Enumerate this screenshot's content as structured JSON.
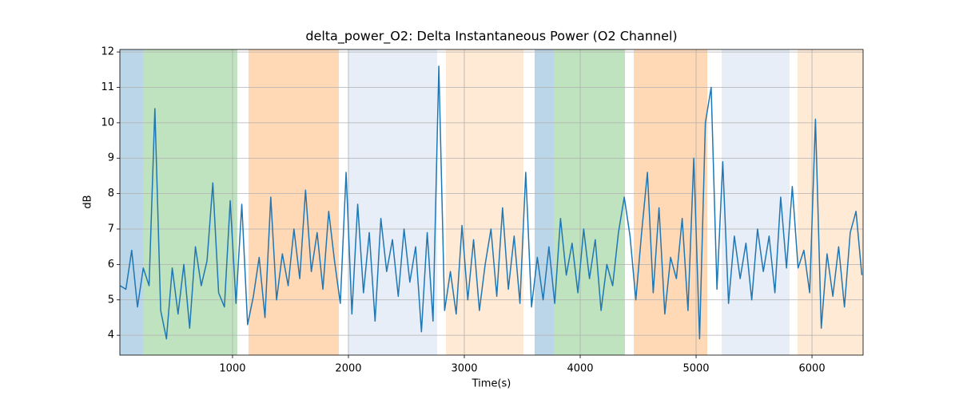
{
  "chart_data": {
    "type": "line",
    "title": "delta_power_O2: Delta Instantaneous Power (O2 Channel)",
    "xlabel": "Time(s)",
    "ylabel": "dB",
    "color": "#1f77b4",
    "x": [
      30,
      80,
      130,
      180,
      230,
      280,
      330,
      380,
      430,
      480,
      530,
      580,
      630,
      680,
      730,
      780,
      830,
      880,
      930,
      980,
      1030,
      1080,
      1130,
      1180,
      1230,
      1280,
      1330,
      1380,
      1430,
      1480,
      1530,
      1580,
      1630,
      1680,
      1730,
      1780,
      1830,
      1880,
      1930,
      1980,
      2030,
      2080,
      2130,
      2180,
      2230,
      2280,
      2330,
      2380,
      2430,
      2480,
      2530,
      2580,
      2630,
      2680,
      2730,
      2780,
      2830,
      2880,
      2930,
      2980,
      3030,
      3080,
      3130,
      3180,
      3230,
      3280,
      3330,
      3380,
      3430,
      3480,
      3530,
      3580,
      3630,
      3680,
      3730,
      3780,
      3830,
      3880,
      3930,
      3980,
      4030,
      4080,
      4130,
      4180,
      4230,
      4280,
      4330,
      4380,
      4430,
      4480,
      4530,
      4580,
      4630,
      4680,
      4730,
      4780,
      4830,
      4880,
      4930,
      4980,
      5030,
      5080,
      5130,
      5180,
      5230,
      5280,
      5330,
      5380,
      5430,
      5480,
      5530,
      5580,
      5630,
      5680,
      5730,
      5780,
      5830,
      5880,
      5930,
      5980,
      6030,
      6080,
      6130,
      6180,
      6230,
      6280,
      6330,
      6380,
      6430
    ],
    "values": [
      5.4,
      5.3,
      6.4,
      4.8,
      5.9,
      5.4,
      10.4,
      4.7,
      3.9,
      5.9,
      4.6,
      6.0,
      4.2,
      6.5,
      5.4,
      6.1,
      8.3,
      5.2,
      4.8,
      7.8,
      4.9,
      7.7,
      4.3,
      5.1,
      6.2,
      4.5,
      7.9,
      5.0,
      6.3,
      5.4,
      7.0,
      5.6,
      8.1,
      5.8,
      6.9,
      5.3,
      7.5,
      6.1,
      4.9,
      8.6,
      4.6,
      7.7,
      5.2,
      6.9,
      4.4,
      7.3,
      5.8,
      6.7,
      5.1,
      7.0,
      5.5,
      6.5,
      4.1,
      6.9,
      4.4,
      11.6,
      4.7,
      5.8,
      4.6,
      7.1,
      5.0,
      6.7,
      4.7,
      6.0,
      7.0,
      5.1,
      7.6,
      5.3,
      6.8,
      4.9,
      8.6,
      4.8,
      6.2,
      5.0,
      6.5,
      4.9,
      7.3,
      5.7,
      6.6,
      5.2,
      7.0,
      5.6,
      6.7,
      4.7,
      6.0,
      5.4,
      6.9,
      7.9,
      6.8,
      5.0,
      6.9,
      8.6,
      5.2,
      7.6,
      4.6,
      6.2,
      5.6,
      7.3,
      4.7,
      9.0,
      3.9,
      10.0,
      11.0,
      5.3,
      8.9,
      4.9,
      6.8,
      5.6,
      6.6,
      5.0,
      7.0,
      5.8,
      6.8,
      5.2,
      7.9,
      5.9,
      8.2,
      5.9,
      6.4,
      5.2,
      10.1,
      4.2,
      6.3,
      5.1,
      6.5,
      4.8,
      6.9,
      7.5,
      5.7
    ],
    "regions": [
      {
        "start": 28,
        "end": 228,
        "color": "#1f77b4"
      },
      {
        "start": 228,
        "end": 1041,
        "color": "#2ca02c"
      },
      {
        "start": 1138,
        "end": 1917,
        "color": "#ff7f0e"
      },
      {
        "start": 2000,
        "end": 2766,
        "color": "#aec7e8"
      },
      {
        "start": 2841,
        "end": 3510,
        "color": "#ffbb78"
      },
      {
        "start": 3607,
        "end": 3772,
        "color": "#1f77b4"
      },
      {
        "start": 3772,
        "end": 4386,
        "color": "#2ca02c"
      },
      {
        "start": 4462,
        "end": 5097,
        "color": "#ff7f0e"
      },
      {
        "start": 5221,
        "end": 5807,
        "color": "#aec7e8"
      },
      {
        "start": 5876,
        "end": 6441,
        "color": "#ffbb78"
      }
    ],
    "xlim": [
      28,
      6441
    ],
    "ylim": [
      3.44,
      12.07
    ],
    "xticks": [
      1000,
      2000,
      3000,
      4000,
      5000,
      6000
    ],
    "yticks": [
      4,
      5,
      6,
      7,
      8,
      9,
      10,
      11,
      12
    ],
    "grid": true
  }
}
